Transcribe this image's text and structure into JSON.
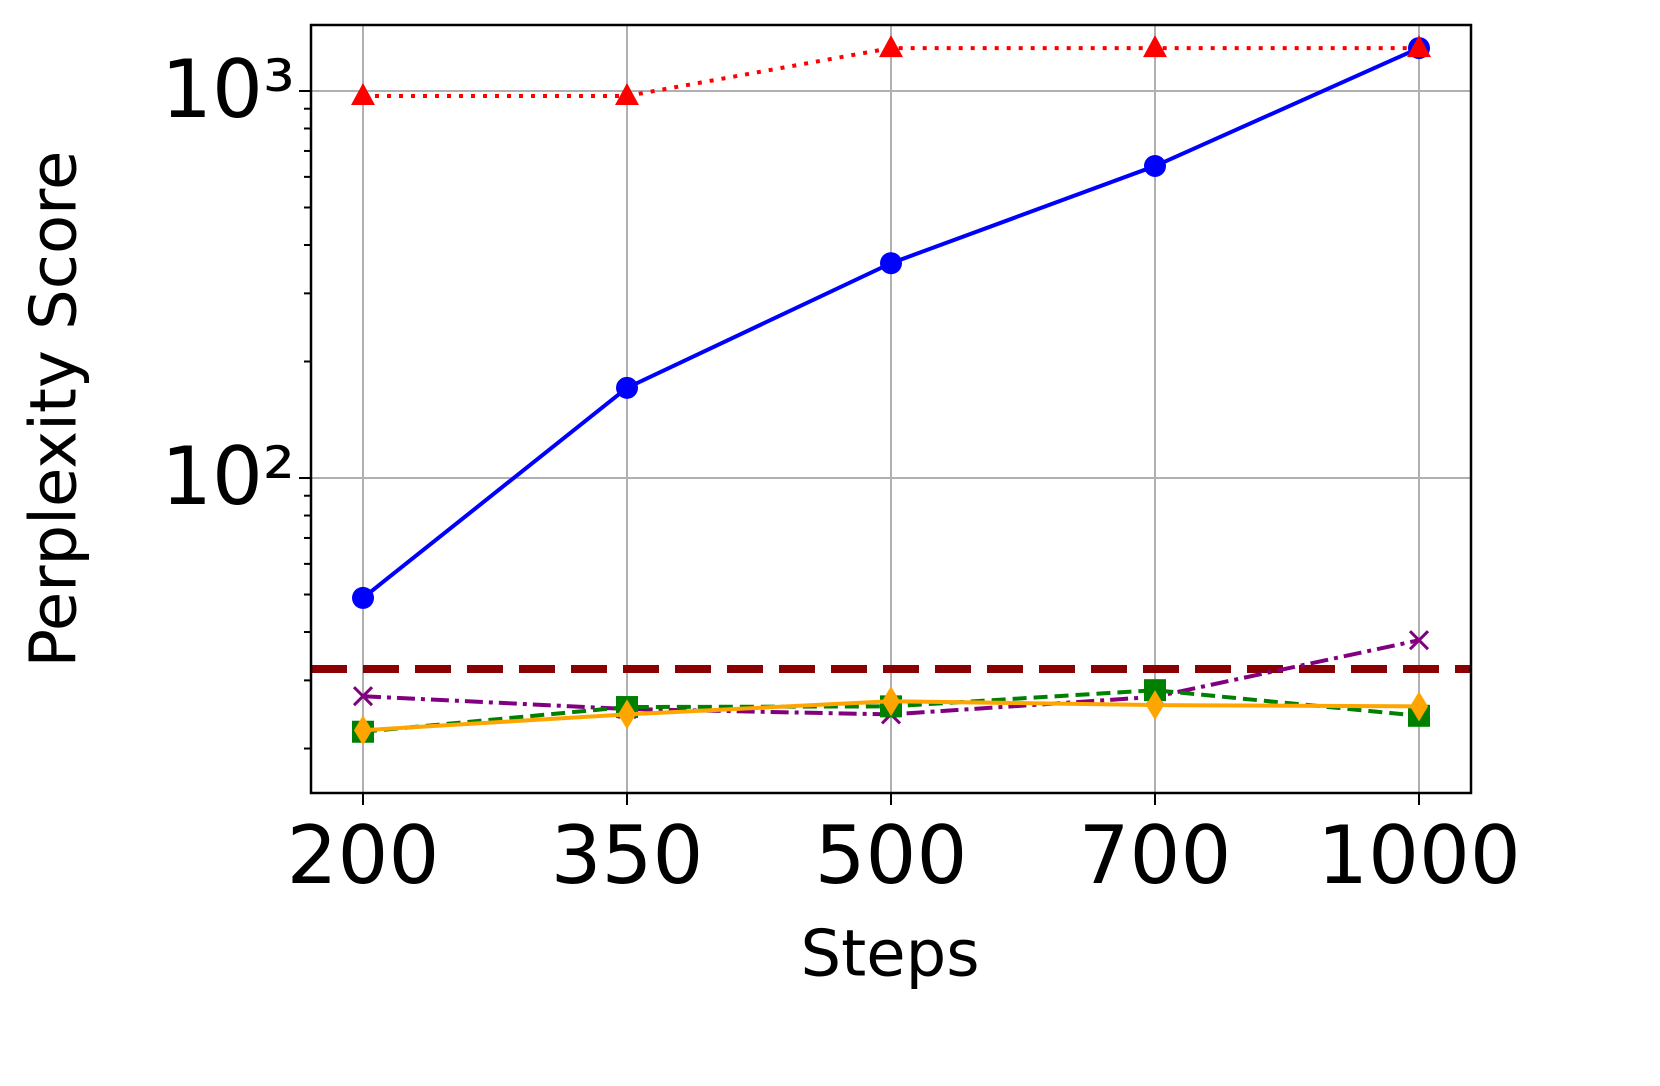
{
  "chart_data": {
    "type": "line",
    "x_label": "Steps",
    "y_label": "Perplexity Score",
    "categories": [
      "200",
      "350",
      "500",
      "700",
      "1000"
    ],
    "log_y": true,
    "grid": true,
    "ylim": [
      15.35,
      1481
    ],
    "yticks": [
      {
        "value": 100,
        "label": "10²"
      },
      {
        "value": 1000,
        "label": "10³"
      }
    ],
    "series": [
      {
        "color": "#0000ff",
        "marker": "circle",
        "dash": "solid",
        "values": [
          49,
          171,
          359,
          640,
          1291
        ]
      },
      {
        "color": "#ff0000",
        "marker": "triangle",
        "dash": "dotted",
        "values": [
          971,
          971,
          1291,
          1291,
          1291
        ]
      },
      {
        "color": "#800080",
        "marker": "x",
        "dash": "dashdot",
        "values": [
          27.3,
          25.3,
          24.5,
          27.2,
          38.1
        ]
      },
      {
        "color": "#008000",
        "marker": "square",
        "dash": "dashed",
        "values": [
          22.1,
          25.6,
          25.7,
          28.3,
          24.3
        ]
      },
      {
        "color": "#ffa500",
        "marker": "diamond",
        "dash": "solid",
        "values": [
          22.3,
          24.5,
          26.5,
          25.9,
          25.7
        ]
      }
    ],
    "hlines": [
      {
        "value": 32.1,
        "color": "#8b0000",
        "dash": "dashed"
      }
    ]
  }
}
